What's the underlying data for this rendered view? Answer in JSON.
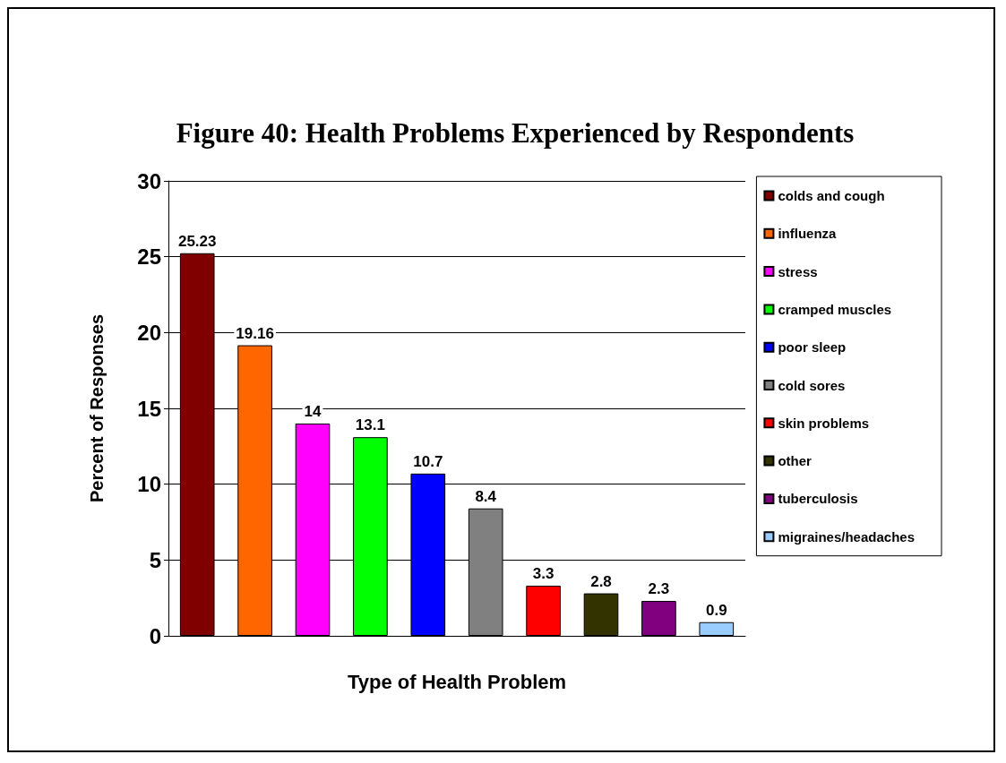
{
  "chart_data": {
    "type": "bar",
    "title": "Figure 40: Health Problems Experienced by Respondents",
    "xlabel": "Type of Health Problem",
    "ylabel": "Percent of Responses",
    "categories": [
      null,
      null,
      null,
      null,
      null,
      null,
      null,
      null,
      null,
      null
    ],
    "series": [
      {
        "name": "colds and cough",
        "color": "#800000",
        "values": [
          25.23,
          null,
          null,
          null,
          null,
          null,
          null,
          null,
          null,
          null
        ]
      },
      {
        "name": "influenza",
        "color": "#ff6600",
        "values": [
          null,
          19.16,
          null,
          null,
          null,
          null,
          null,
          null,
          null,
          null
        ]
      },
      {
        "name": "stress",
        "color": "#ff00ff",
        "values": [
          null,
          null,
          14,
          null,
          null,
          null,
          null,
          null,
          null,
          null
        ]
      },
      {
        "name": "cramped muscles",
        "color": "#00ff00",
        "values": [
          null,
          null,
          null,
          13.1,
          null,
          null,
          null,
          null,
          null,
          null
        ]
      },
      {
        "name": "poor sleep",
        "color": "#0000ff",
        "values": [
          null,
          null,
          null,
          null,
          10.7,
          null,
          null,
          null,
          null,
          null
        ]
      },
      {
        "name": "cold sores",
        "color": "#808080",
        "values": [
          null,
          null,
          null,
          null,
          null,
          8.4,
          null,
          null,
          null,
          null
        ]
      },
      {
        "name": "skin problems",
        "color": "#ff0000",
        "values": [
          null,
          null,
          null,
          null,
          null,
          null,
          3.3,
          null,
          null,
          null
        ]
      },
      {
        "name": "other",
        "color": "#333300",
        "values": [
          null,
          null,
          null,
          null,
          null,
          null,
          null,
          2.8,
          null,
          null
        ]
      },
      {
        "name": "tuberculosis",
        "color": "#800080",
        "values": [
          null,
          null,
          null,
          null,
          null,
          null,
          null,
          null,
          2.3,
          null
        ]
      },
      {
        "name": "migraines/headaches",
        "color": "#99ccff",
        "values": [
          null,
          null,
          null,
          null,
          null,
          null,
          null,
          null,
          null,
          0.9
        ]
      }
    ],
    "ylim": [
      0,
      30
    ],
    "yticks": [
      0,
      5,
      10,
      15,
      20,
      25,
      30
    ],
    "grid": "y",
    "legend": "right",
    "data_labels": true
  }
}
